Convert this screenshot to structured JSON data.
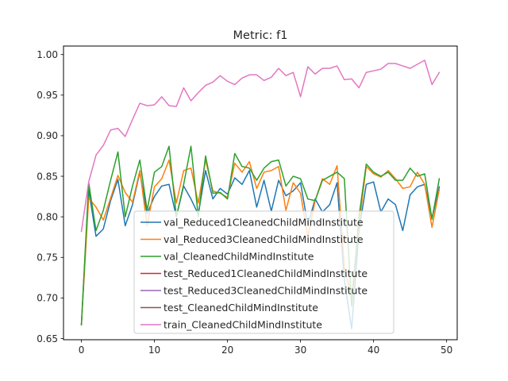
{
  "chart_data": {
    "type": "line",
    "title": "Metric: f1",
    "xlabel": "",
    "ylabel": "",
    "xlim": [
      -2.45,
      51.45
    ],
    "ylim": [
      0.6485,
      1.0105
    ],
    "xticks": [
      0,
      10,
      20,
      30,
      40,
      50
    ],
    "yticks": [
      0.65,
      0.7,
      0.75,
      0.8,
      0.85,
      0.9,
      0.95,
      1.0
    ],
    "ytick_labels": [
      "0.65",
      "0.70",
      "0.75",
      "0.80",
      "0.85",
      "0.90",
      "0.95",
      "1.00"
    ],
    "grid": false,
    "legend_location": "lower center",
    "series": [
      {
        "name": "val_Reduced1CleanedChildMindInstitute",
        "color": "#1f77b4",
        "x": [
          0,
          1,
          2,
          3,
          4,
          5,
          6,
          7,
          8,
          9,
          10,
          11,
          12,
          13,
          14,
          15,
          16,
          17,
          18,
          19,
          20,
          21,
          22,
          23,
          24,
          25,
          26,
          27,
          28,
          29,
          30,
          31,
          32,
          33,
          34,
          35,
          36,
          37,
          38,
          39,
          40,
          41,
          42,
          43,
          44,
          45,
          46,
          47,
          48,
          49
        ],
        "y": [
          0.667,
          0.833,
          0.776,
          0.785,
          0.82,
          0.846,
          0.789,
          0.815,
          0.855,
          0.804,
          0.825,
          0.838,
          0.84,
          0.8,
          0.838,
          0.822,
          0.803,
          0.857,
          0.822,
          0.835,
          0.828,
          0.848,
          0.84,
          0.857,
          0.812,
          0.845,
          0.807,
          0.845,
          0.826,
          0.832,
          0.842,
          0.79,
          0.822,
          0.806,
          0.815,
          0.842,
          0.722,
          0.662,
          0.783,
          0.84,
          0.843,
          0.806,
          0.822,
          0.815,
          0.783,
          0.827,
          0.837,
          0.84,
          0.798,
          0.837
        ]
      },
      {
        "name": "val_Reduced3CleanedChildMindInstitute",
        "color": "#ff7f0e",
        "x": [
          0,
          1,
          2,
          3,
          4,
          5,
          6,
          7,
          8,
          9,
          10,
          11,
          12,
          13,
          14,
          15,
          16,
          17,
          18,
          19,
          20,
          21,
          22,
          23,
          24,
          25,
          26,
          27,
          28,
          29,
          30,
          31,
          32,
          33,
          34,
          35,
          36,
          37,
          38,
          39,
          40,
          41,
          42,
          43,
          44,
          45,
          46,
          47,
          48,
          49
        ],
        "y": [
          0.667,
          0.823,
          0.812,
          0.796,
          0.823,
          0.851,
          0.83,
          0.818,
          0.857,
          0.789,
          0.837,
          0.847,
          0.87,
          0.817,
          0.857,
          0.86,
          0.817,
          0.87,
          0.832,
          0.829,
          0.824,
          0.866,
          0.855,
          0.868,
          0.835,
          0.855,
          0.857,
          0.862,
          0.808,
          0.842,
          0.829,
          0.775,
          0.82,
          0.847,
          0.84,
          0.863,
          0.738,
          0.7,
          0.79,
          0.862,
          0.853,
          0.849,
          0.857,
          0.847,
          0.835,
          0.837,
          0.855,
          0.84,
          0.787,
          0.834
        ]
      },
      {
        "name": "val_CleanedChildMindInstitute",
        "color": "#2ca02c",
        "x": [
          0,
          1,
          2,
          3,
          4,
          5,
          6,
          7,
          8,
          9,
          10,
          11,
          12,
          13,
          14,
          15,
          16,
          17,
          18,
          19,
          20,
          21,
          22,
          23,
          24,
          25,
          26,
          27,
          28,
          29,
          30,
          31,
          32,
          33,
          34,
          35,
          36,
          37,
          38,
          39,
          40,
          41,
          42,
          43,
          44,
          45,
          46,
          47,
          48,
          49
        ],
        "y": [
          0.667,
          0.842,
          0.783,
          0.808,
          0.845,
          0.88,
          0.8,
          0.838,
          0.87,
          0.808,
          0.855,
          0.862,
          0.887,
          0.8,
          0.84,
          0.887,
          0.8,
          0.875,
          0.829,
          0.83,
          0.822,
          0.878,
          0.862,
          0.86,
          0.845,
          0.86,
          0.868,
          0.87,
          0.838,
          0.85,
          0.847,
          0.822,
          0.82,
          0.845,
          0.85,
          0.855,
          0.847,
          0.69,
          0.8,
          0.865,
          0.855,
          0.85,
          0.855,
          0.845,
          0.845,
          0.86,
          0.85,
          0.853,
          0.797,
          0.847
        ]
      },
      {
        "name": "test_Reduced1CleanedChildMindInstitute",
        "color": "#d62728",
        "x": [],
        "y": []
      },
      {
        "name": "test_Reduced3CleanedChildMindInstitute",
        "color": "#9467bd",
        "x": [],
        "y": []
      },
      {
        "name": "test_CleanedChildMindInstitute",
        "color": "#8c564b",
        "x": [],
        "y": []
      },
      {
        "name": "train_CleanedChildMindInstitute",
        "color": "#e377c2",
        "x": [
          0,
          1,
          2,
          3,
          4,
          5,
          6,
          7,
          8,
          9,
          10,
          11,
          12,
          13,
          14,
          15,
          16,
          17,
          18,
          19,
          20,
          21,
          22,
          23,
          24,
          25,
          26,
          27,
          28,
          29,
          30,
          31,
          32,
          33,
          34,
          35,
          36,
          37,
          38,
          39,
          40,
          41,
          42,
          43,
          44,
          45,
          46,
          47,
          48,
          49
        ],
        "y": [
          0.782,
          0.843,
          0.876,
          0.888,
          0.907,
          0.909,
          0.899,
          0.92,
          0.94,
          0.937,
          0.938,
          0.948,
          0.937,
          0.936,
          0.959,
          0.943,
          0.953,
          0.962,
          0.966,
          0.974,
          0.967,
          0.963,
          0.971,
          0.975,
          0.975,
          0.968,
          0.972,
          0.983,
          0.974,
          0.978,
          0.948,
          0.985,
          0.976,
          0.983,
          0.983,
          0.986,
          0.969,
          0.97,
          0.959,
          0.978,
          0.98,
          0.982,
          0.989,
          0.989,
          0.986,
          0.983,
          0.988,
          0.993,
          0.963,
          0.978
        ]
      }
    ]
  }
}
